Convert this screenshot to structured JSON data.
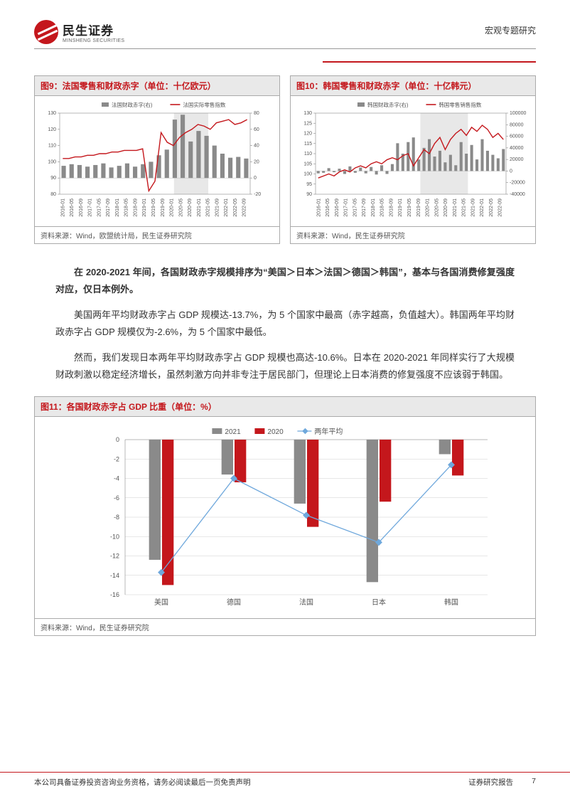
{
  "header": {
    "brand_cn": "民生证券",
    "brand_en": "MINSHENG SECURITIES",
    "doc_type": "宏观专题研究"
  },
  "colors": {
    "brand_red": "#c4171c",
    "bar_gray": "#8a8a8a",
    "bar_red": "#c4171c",
    "line_red": "#c4171c",
    "line_blue": "#6fa8dc",
    "grid": "#cfcfcf",
    "text": "#333333",
    "panel_bg": "#e9e9e9",
    "highlight_band": "#e8e8e8"
  },
  "fig9": {
    "title": "图9：法国零售和财政赤字（单位：十亿欧元）",
    "source": "资料来源：Wind，欧盟统计局，民生证券研究院",
    "legend": {
      "bar": "法国财政赤字(右)",
      "line": "法国实际零售指数"
    },
    "x_labels": [
      "2016-01",
      "2016-05",
      "2016-09",
      "2017-01",
      "2017-05",
      "2017-09",
      "2018-01",
      "2018-05",
      "2018-09",
      "2019-01",
      "2019-05",
      "2019-09",
      "2020-01",
      "2020-05",
      "2020-09",
      "2021-01",
      "2021-05",
      "2021-09",
      "2022-01",
      "2022-05",
      "2022-09"
    ],
    "y_left": {
      "min": 80,
      "max": 130,
      "step": 10
    },
    "y_right": {
      "min": -20,
      "max": 80,
      "step": 20
    },
    "bars": [
      15,
      17,
      16,
      14,
      16,
      18,
      13,
      15,
      18,
      14,
      17,
      20,
      28,
      35,
      72,
      78,
      45,
      58,
      52,
      40,
      30,
      25,
      26,
      24
    ],
    "line": [
      102,
      102,
      103,
      103,
      104,
      104,
      105,
      105,
      106,
      106,
      107,
      107,
      107,
      108,
      82,
      88,
      118,
      112,
      110,
      115,
      118,
      120,
      123,
      122,
      120,
      124,
      125,
      126,
      123,
      124,
      126
    ],
    "highlight_band_x": [
      0.6,
      0.78
    ]
  },
  "fig10": {
    "title": "图10：韩国零售和财政赤字（单位：十亿韩元）",
    "source": "资料来源：Wind，民生证券研究院",
    "legend": {
      "bar": "韩国财政赤字(右)",
      "line": "韩国零售销售指数"
    },
    "x_labels": [
      "2016-01",
      "2016-05",
      "2016-09",
      "2017-01",
      "2017-05",
      "2017-09",
      "2018-01",
      "2018-05",
      "2018-09",
      "2019-01",
      "2019-05",
      "2019-09",
      "2020-01",
      "2020-05",
      "2020-09",
      "2021-01",
      "2021-05",
      "2021-09",
      "2022-01",
      "2022-05",
      "2022-09"
    ],
    "y_left": {
      "min": 90,
      "max": 130,
      "step": 5
    },
    "y_right": {
      "min": -40000,
      "max": 100000,
      "step": 20000
    },
    "bars": [
      -4000,
      -3000,
      5000,
      -2000,
      4000,
      -5000,
      8000,
      -3000,
      6000,
      -4000,
      7000,
      -6000,
      10000,
      -5000,
      12000,
      48000,
      30000,
      50000,
      58000,
      20000,
      40000,
      55000,
      25000,
      35000,
      15000,
      28000,
      10000,
      50000,
      30000,
      45000,
      20000,
      55000,
      35000,
      28000,
      22000,
      38000
    ],
    "line": [
      98,
      99,
      100,
      99,
      101,
      102,
      101,
      103,
      104,
      103,
      105,
      106,
      105,
      107,
      108,
      107,
      109,
      110,
      104,
      108,
      112,
      110,
      115,
      118,
      112,
      117,
      120,
      122,
      119,
      123,
      121,
      124,
      122,
      118,
      120,
      117
    ],
    "highlight_band_x": [
      0.55,
      0.8
    ]
  },
  "body": {
    "p1": "在 2020-2021 年间，各国财政赤字规模排序为“美国＞日本＞法国＞德国＞韩国”，基本与各国消费修复强度对应，仅日本例外。",
    "p2": "美国两年平均财政赤字占 GDP 规模达-13.7%，为 5 个国家中最高（赤字越高，负值越大）。韩国两年平均财政赤字占 GDP 规模仅为-2.6%，为 5 个国家中最低。",
    "p3": "然而，我们发现日本两年平均财政赤字占 GDP 规模也高达-10.6%。日本在 2020-2021 年同样实行了大规模财政刺激以稳定经济增长，虽然刺激方向并非专注于居民部门，但理论上日本消费的修复强度不应该弱于韩国。"
  },
  "fig11": {
    "title": "图11：各国财政赤字占 GDP 比重（单位：%）",
    "source": "资料来源：Wind，民生证券研究院",
    "legend": {
      "s2021": "2021",
      "s2020": "2020",
      "avg": "两年平均"
    },
    "categories": [
      "美国",
      "德国",
      "法国",
      "日本",
      "韩国"
    ],
    "values_2021": [
      -12.4,
      -3.6,
      -6.6,
      -14.7,
      -1.5
    ],
    "values_2020": [
      -15.0,
      -4.4,
      -9.0,
      -6.4,
      -3.7
    ],
    "avg": [
      -13.7,
      -4.0,
      -7.8,
      -10.6,
      -2.6
    ],
    "y": {
      "min": 0,
      "max": -16,
      "step": -2
    },
    "bar_color_2021": "#8a8a8a",
    "bar_color_2020": "#c4171c",
    "line_color": "#6fa8dc",
    "bar_width": 0.32
  },
  "footer": {
    "left": "本公司具备证券投资咨询业务资格，请务必阅读最后一页免责声明",
    "right_label": "证券研究报告",
    "page": "7"
  }
}
